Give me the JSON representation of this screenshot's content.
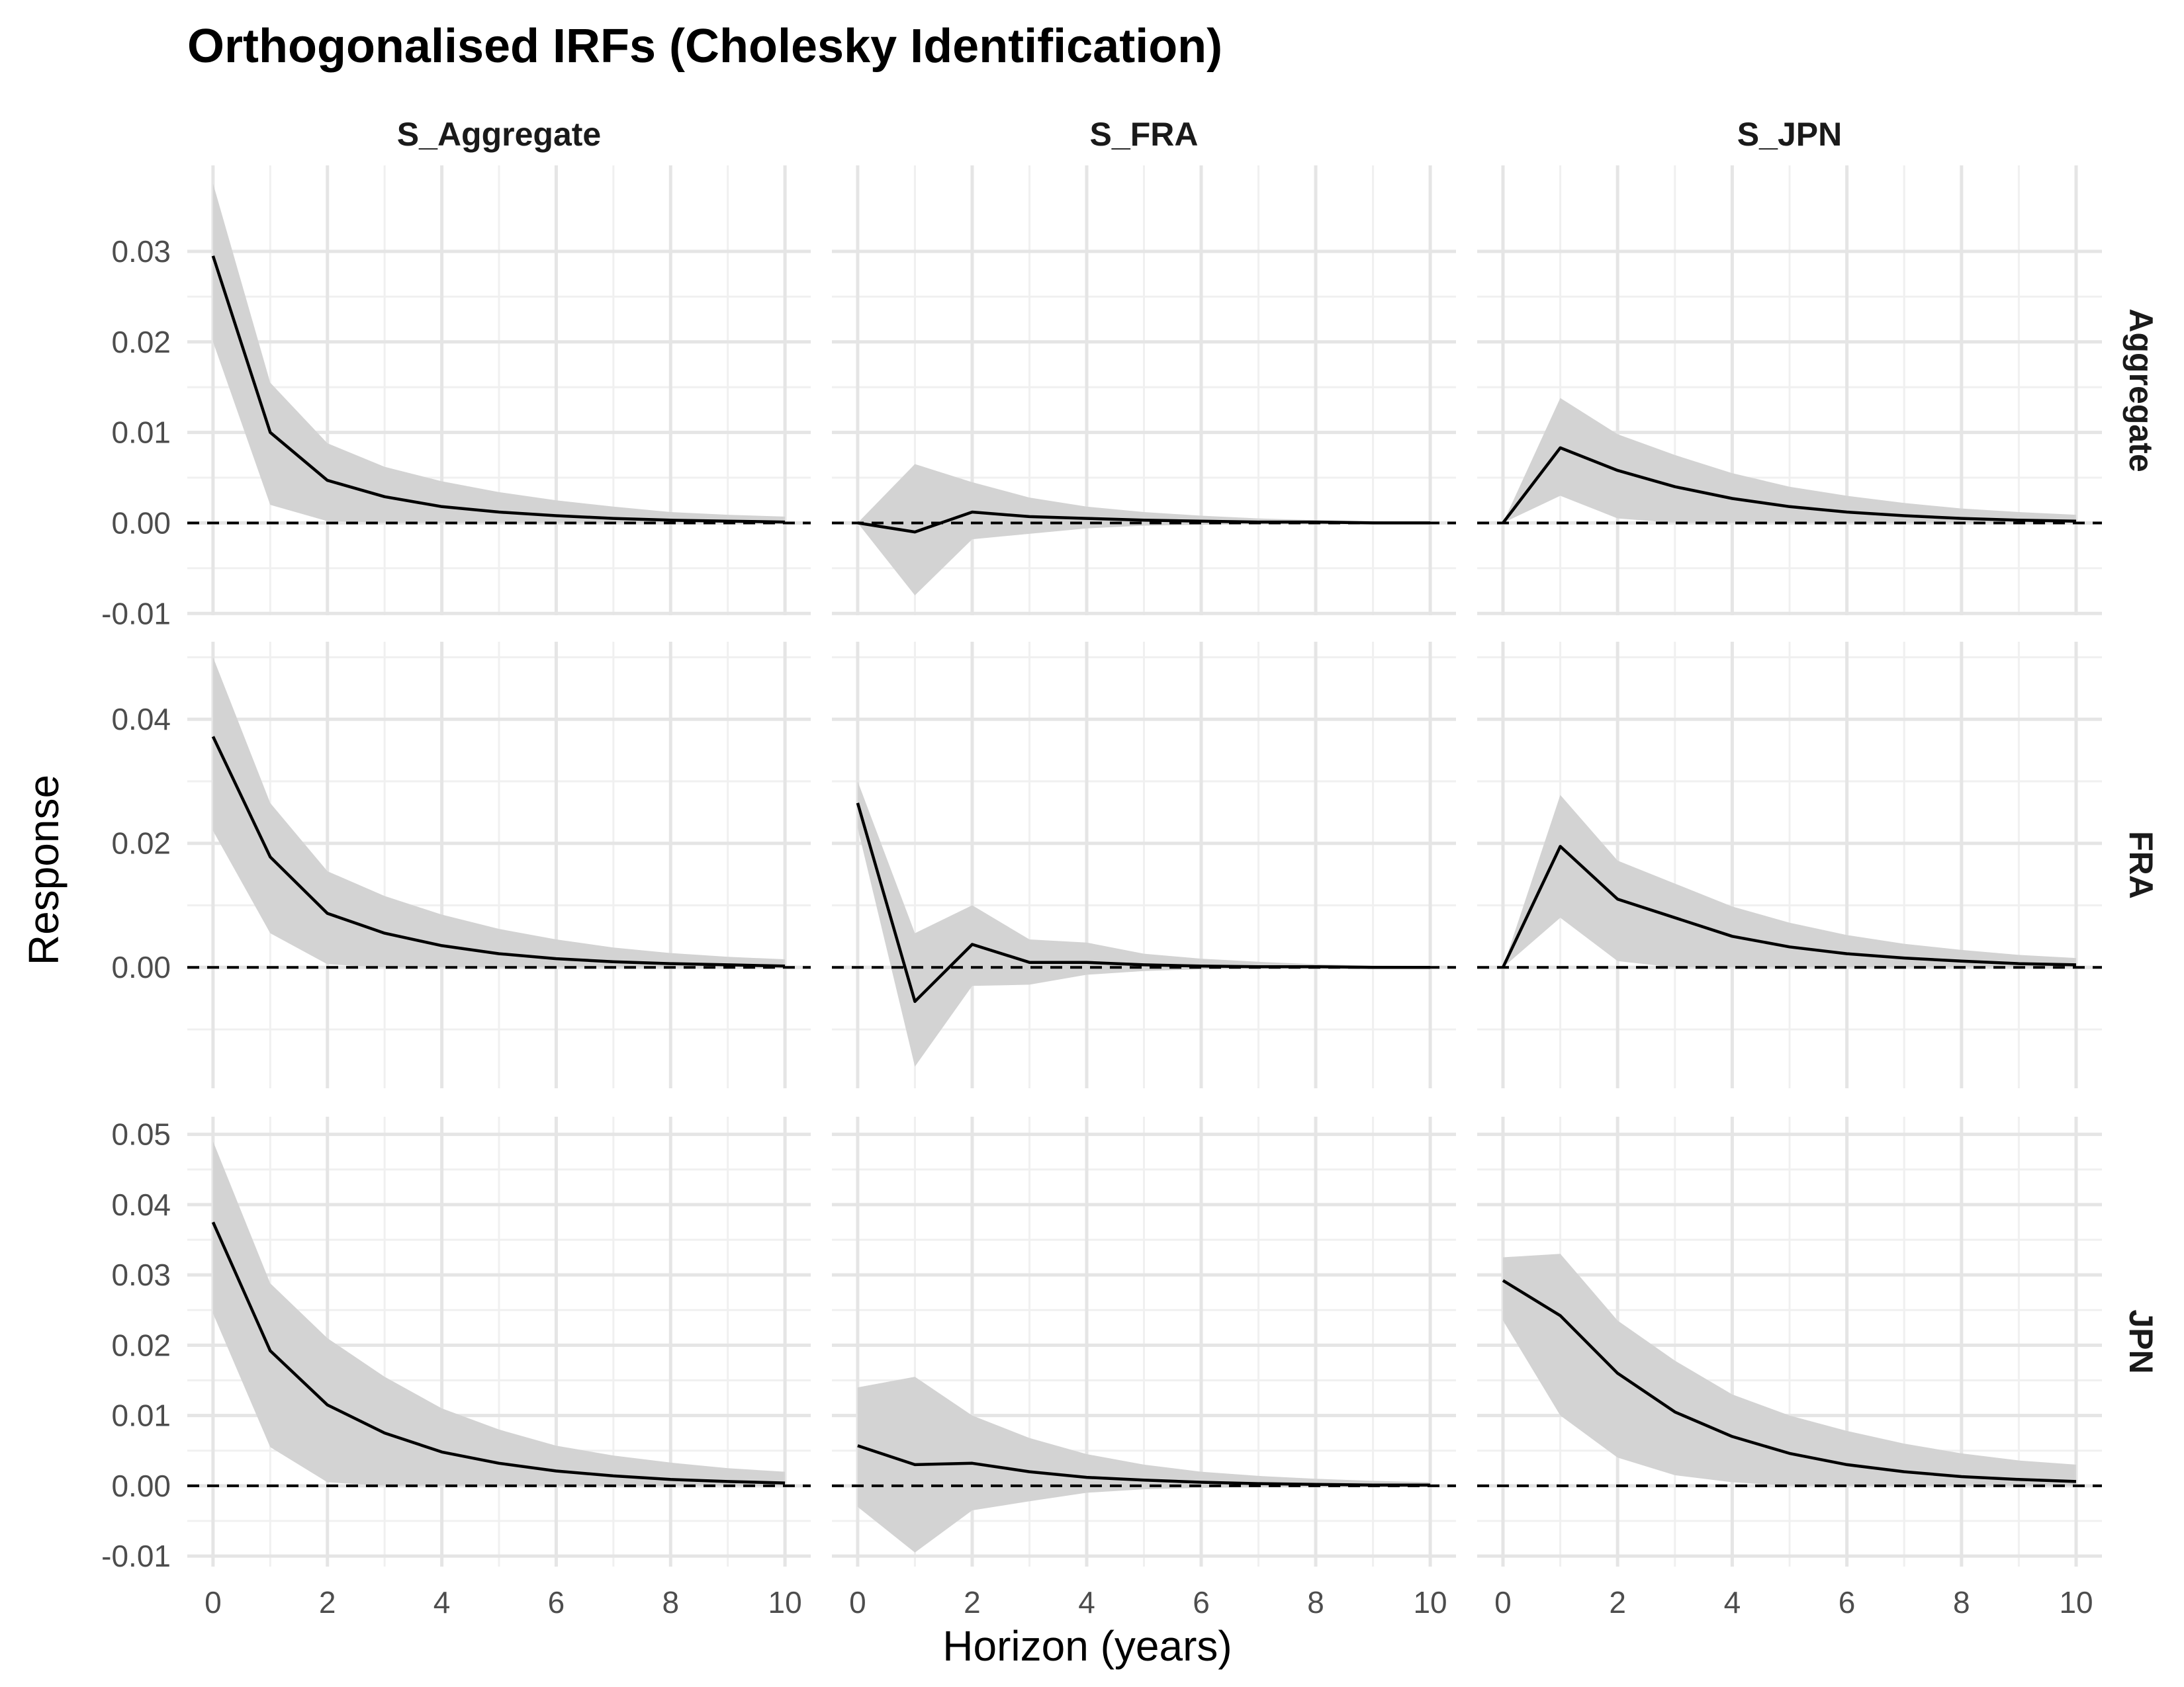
{
  "chart_data": {
    "type": "line",
    "title": "Orthogonalised IRFs (Cholesky Identification)",
    "xlabel": "Horizon (years)",
    "ylabel": "Response",
    "facet_columns": [
      "S_Aggregate",
      "S_FRA",
      "S_JPN"
    ],
    "facet_rows": [
      "Aggregate",
      "FRA",
      "JPN"
    ],
    "x": [
      0,
      1,
      2,
      3,
      4,
      5,
      6,
      7,
      8,
      9,
      10
    ],
    "x_ticks": [
      0,
      2,
      4,
      6,
      8,
      10
    ],
    "xlim": [
      -0.45,
      10.45
    ],
    "rows": [
      {
        "name": "Aggregate",
        "ylim": [
          -0.0102,
          0.0395
        ],
        "y_ticks": [
          -0.01,
          0.0,
          0.01,
          0.02,
          0.03
        ],
        "y_tick_labels": [
          "-0.01",
          "0.00",
          "0.01",
          "0.02",
          "0.03"
        ],
        "panels": [
          {
            "shock": "S_Aggregate",
            "response": [
              0.0295,
              0.01,
              0.0047,
              0.0029,
              0.0018,
              0.0012,
              0.0008,
              0.0005,
              0.0003,
              0.0002,
              0.0001
            ],
            "lower": [
              0.02,
              0.002,
              0.0002,
              0.0,
              0.0,
              0.0,
              0.0,
              0.0,
              0.0,
              0.0,
              0.0
            ],
            "upper": [
              0.0375,
              0.0155,
              0.0088,
              0.0062,
              0.0046,
              0.0034,
              0.0025,
              0.0018,
              0.0012,
              0.0009,
              0.0007
            ]
          },
          {
            "shock": "S_FRA",
            "response": [
              0.0,
              -0.001,
              0.0012,
              0.0007,
              0.0005,
              0.0003,
              0.0002,
              0.0001,
              0.0001,
              0.0,
              0.0
            ],
            "lower": [
              0.0,
              -0.008,
              -0.0018,
              -0.0012,
              -0.0006,
              -0.0003,
              -0.0002,
              -0.0001,
              -0.0001,
              0.0,
              0.0
            ],
            "upper": [
              0.0,
              0.0065,
              0.0045,
              0.0028,
              0.0018,
              0.0012,
              0.0008,
              0.0005,
              0.0003,
              0.0002,
              0.0001
            ]
          },
          {
            "shock": "S_JPN",
            "response": [
              0.0,
              0.0083,
              0.0058,
              0.004,
              0.0027,
              0.0018,
              0.0012,
              0.0008,
              0.0005,
              0.0003,
              0.0002
            ],
            "lower": [
              0.0,
              0.003,
              0.0005,
              0.0,
              0.0,
              0.0,
              0.0,
              0.0,
              0.0,
              0.0,
              0.0
            ],
            "upper": [
              0.0,
              0.0138,
              0.0098,
              0.0075,
              0.0055,
              0.004,
              0.003,
              0.0022,
              0.0016,
              0.0012,
              0.0009
            ]
          }
        ]
      },
      {
        "name": "FRA",
        "ylim": [
          -0.0195,
          0.0525
        ],
        "y_ticks": [
          0.0,
          0.02,
          0.04
        ],
        "y_tick_labels": [
          "0.00",
          "0.02",
          "0.04"
        ],
        "minor_y_ticks": [
          -0.01,
          0.01,
          0.03,
          0.05
        ],
        "panels": [
          {
            "shock": "S_Aggregate",
            "response": [
              0.0372,
              0.0178,
              0.0087,
              0.0055,
              0.0035,
              0.0022,
              0.0014,
              0.0009,
              0.0006,
              0.0004,
              0.0002
            ],
            "lower": [
              0.022,
              0.0055,
              0.0005,
              0.0,
              0.0,
              0.0,
              0.0,
              0.0,
              0.0,
              0.0,
              0.0
            ],
            "upper": [
              0.05,
              0.0265,
              0.0155,
              0.0115,
              0.0085,
              0.0062,
              0.0045,
              0.0032,
              0.0023,
              0.0017,
              0.0013
            ]
          },
          {
            "shock": "S_FRA",
            "response": [
              0.0265,
              -0.0055,
              0.0037,
              0.0008,
              0.0008,
              0.0004,
              0.0002,
              0.0001,
              0.0001,
              0.0,
              0.0
            ],
            "lower": [
              0.0225,
              -0.016,
              -0.003,
              -0.0028,
              -0.0012,
              -0.0006,
              -0.0003,
              -0.0002,
              -0.0001,
              0.0,
              0.0
            ],
            "upper": [
              0.03,
              0.0055,
              0.01,
              0.0045,
              0.004,
              0.0022,
              0.0014,
              0.0009,
              0.0005,
              0.0003,
              0.0002
            ]
          },
          {
            "shock": "S_JPN",
            "response": [
              0.0,
              0.0195,
              0.011,
              0.008,
              0.005,
              0.0033,
              0.0022,
              0.0015,
              0.001,
              0.0006,
              0.0004
            ],
            "lower": [
              0.0,
              0.008,
              0.001,
              0.0,
              0.0,
              0.0,
              0.0,
              0.0,
              0.0,
              0.0,
              0.0
            ],
            "upper": [
              0.0,
              0.0278,
              0.0172,
              0.0135,
              0.0098,
              0.0072,
              0.0052,
              0.0038,
              0.0028,
              0.002,
              0.0015
            ]
          }
        ]
      },
      {
        "name": "JPN",
        "ylim": [
          -0.0115,
          0.0525
        ],
        "y_ticks": [
          -0.01,
          0.0,
          0.01,
          0.02,
          0.03,
          0.04,
          0.05
        ],
        "y_tick_labels": [
          "-0.01",
          "0.00",
          "0.01",
          "0.02",
          "0.03",
          "0.04",
          "0.05"
        ],
        "panels": [
          {
            "shock": "S_Aggregate",
            "response": [
              0.0375,
              0.0192,
              0.0115,
              0.0075,
              0.0048,
              0.0032,
              0.0021,
              0.0014,
              0.0009,
              0.0006,
              0.0004
            ],
            "lower": [
              0.0245,
              0.0055,
              0.0005,
              0.0,
              0.0,
              0.0,
              0.0,
              0.0,
              0.0,
              0.0,
              0.0
            ],
            "upper": [
              0.049,
              0.0288,
              0.021,
              0.0155,
              0.011,
              0.008,
              0.0057,
              0.0043,
              0.0033,
              0.0025,
              0.002
            ]
          },
          {
            "shock": "S_FRA",
            "response": [
              0.0057,
              0.003,
              0.0032,
              0.002,
              0.0012,
              0.0008,
              0.0005,
              0.0003,
              0.0002,
              0.0001,
              0.0001
            ],
            "lower": [
              -0.003,
              -0.0095,
              -0.0035,
              -0.0022,
              -0.001,
              -0.0005,
              -0.0003,
              -0.0002,
              -0.0001,
              0.0,
              0.0
            ],
            "upper": [
              0.014,
              0.0155,
              0.01,
              0.0068,
              0.0045,
              0.003,
              0.002,
              0.0014,
              0.001,
              0.0007,
              0.0005
            ]
          },
          {
            "shock": "S_JPN",
            "response": [
              0.0292,
              0.0242,
              0.016,
              0.0105,
              0.007,
              0.0046,
              0.003,
              0.002,
              0.0013,
              0.0009,
              0.0006
            ],
            "lower": [
              0.0235,
              0.01,
              0.004,
              0.0015,
              0.0005,
              0.0,
              0.0,
              0.0,
              0.0,
              0.0,
              0.0
            ],
            "upper": [
              0.0325,
              0.033,
              0.0235,
              0.0178,
              0.013,
              0.01,
              0.0078,
              0.006,
              0.0046,
              0.0036,
              0.003
            ]
          }
        ]
      }
    ],
    "reference_line": {
      "y": 0,
      "style": "dashed",
      "color": "#000000"
    },
    "band_color": "#d3d3d3",
    "line_color": "#000000",
    "grid": true,
    "legend": "none"
  }
}
